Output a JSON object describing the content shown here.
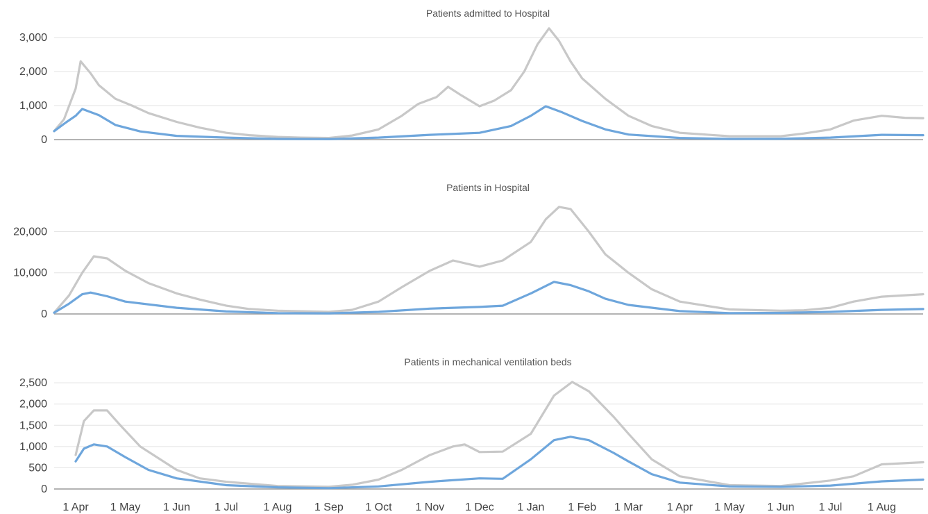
{
  "colors": {
    "series_a": "#c8c8c8",
    "series_b": "#6ea6dc",
    "grid": "#e3e3e3",
    "baseline": "#9a9a9a"
  },
  "x_axis": {
    "ticks": [
      {
        "date": "2020-04-01",
        "label": "1 Apr"
      },
      {
        "date": "2020-05-01",
        "label": "1 May"
      },
      {
        "date": "2020-06-01",
        "label": "1 Jun"
      },
      {
        "date": "2020-07-01",
        "label": "1 Jul"
      },
      {
        "date": "2020-08-01",
        "label": "1 Aug"
      },
      {
        "date": "2020-09-01",
        "label": "1 Sep"
      },
      {
        "date": "2020-10-01",
        "label": "1 Oct"
      },
      {
        "date": "2020-11-01",
        "label": "1 Nov"
      },
      {
        "date": "2020-12-01",
        "label": "1 Dec"
      },
      {
        "date": "2021-01-01",
        "label": "1 Jan"
      },
      {
        "date": "2021-02-01",
        "label": "1 Feb"
      },
      {
        "date": "2021-03-01",
        "label": "1 Mar"
      },
      {
        "date": "2021-04-01",
        "label": "1 Apr"
      },
      {
        "date": "2021-05-01",
        "label": "1 May"
      },
      {
        "date": "2021-06-01",
        "label": "1 Jun"
      },
      {
        "date": "2021-07-01",
        "label": "1 Jul"
      },
      {
        "date": "2021-08-01",
        "label": "1 Aug"
      }
    ],
    "range": [
      "2020-03-19",
      "2021-08-26"
    ]
  },
  "chart_data": [
    {
      "type": "line",
      "title": "Patients admitted to Hospital",
      "ylim": [
        0,
        3000
      ],
      "yticks": [
        0,
        1000,
        2000,
        3000
      ],
      "ytick_labels": [
        "0",
        "1,000",
        "2,000",
        "3,000"
      ],
      "grid": true,
      "series": [
        {
          "points": [
            [
              "2020-03-19",
              250
            ],
            [
              "2020-03-25",
              600
            ],
            [
              "2020-04-01",
              1500
            ],
            [
              "2020-04-04",
              2300
            ],
            [
              "2020-04-10",
              1950
            ],
            [
              "2020-04-15",
              1600
            ],
            [
              "2020-04-25",
              1200
            ],
            [
              "2020-05-05",
              1000
            ],
            [
              "2020-05-15",
              780
            ],
            [
              "2020-06-01",
              520
            ],
            [
              "2020-06-15",
              350
            ],
            [
              "2020-07-01",
              200
            ],
            [
              "2020-07-15",
              130
            ],
            [
              "2020-08-01",
              80
            ],
            [
              "2020-08-15",
              60
            ],
            [
              "2020-09-01",
              50
            ],
            [
              "2020-09-15",
              120
            ],
            [
              "2020-10-01",
              300
            ],
            [
              "2020-10-15",
              700
            ],
            [
              "2020-10-25",
              1050
            ],
            [
              "2020-11-05",
              1250
            ],
            [
              "2020-11-12",
              1550
            ],
            [
              "2020-11-20",
              1300
            ],
            [
              "2020-12-01",
              980
            ],
            [
              "2020-12-10",
              1150
            ],
            [
              "2020-12-20",
              1450
            ],
            [
              "2020-12-28",
              2000
            ],
            [
              "2021-01-05",
              2800
            ],
            [
              "2021-01-12",
              3270
            ],
            [
              "2021-01-18",
              2900
            ],
            [
              "2021-01-25",
              2300
            ],
            [
              "2021-02-01",
              1800
            ],
            [
              "2021-02-15",
              1200
            ],
            [
              "2021-03-01",
              700
            ],
            [
              "2021-03-15",
              400
            ],
            [
              "2021-04-01",
              200
            ],
            [
              "2021-05-01",
              100
            ],
            [
              "2021-06-01",
              100
            ],
            [
              "2021-06-15",
              180
            ],
            [
              "2021-07-01",
              300
            ],
            [
              "2021-07-15",
              560
            ],
            [
              "2021-08-01",
              700
            ],
            [
              "2021-08-15",
              640
            ],
            [
              "2021-08-26",
              630
            ]
          ]
        },
        {
          "points": [
            [
              "2020-03-19",
              250
            ],
            [
              "2020-03-26",
              500
            ],
            [
              "2020-04-01",
              700
            ],
            [
              "2020-04-05",
              900
            ],
            [
              "2020-04-15",
              720
            ],
            [
              "2020-04-25",
              430
            ],
            [
              "2020-05-10",
              240
            ],
            [
              "2020-06-01",
              110
            ],
            [
              "2020-07-01",
              60
            ],
            [
              "2020-08-01",
              20
            ],
            [
              "2020-09-01",
              15
            ],
            [
              "2020-10-01",
              60
            ],
            [
              "2020-11-01",
              140
            ],
            [
              "2020-12-01",
              200
            ],
            [
              "2020-12-20",
              400
            ],
            [
              "2021-01-01",
              700
            ],
            [
              "2021-01-10",
              980
            ],
            [
              "2021-01-20",
              800
            ],
            [
              "2021-02-01",
              550
            ],
            [
              "2021-02-15",
              300
            ],
            [
              "2021-03-01",
              150
            ],
            [
              "2021-04-01",
              50
            ],
            [
              "2021-05-01",
              20
            ],
            [
              "2021-06-01",
              25
            ],
            [
              "2021-07-01",
              60
            ],
            [
              "2021-08-01",
              140
            ],
            [
              "2021-08-26",
              130
            ]
          ]
        }
      ]
    },
    {
      "type": "line",
      "title": "Patients in Hospital",
      "ylim": [
        0,
        27000
      ],
      "yticks": [
        0,
        10000,
        20000
      ],
      "ytick_labels": [
        "0",
        "10,000",
        "20,000"
      ],
      "grid": true,
      "series": [
        {
          "points": [
            [
              "2020-03-19",
              300
            ],
            [
              "2020-03-28",
              4500
            ],
            [
              "2020-04-05",
              10000
            ],
            [
              "2020-04-12",
              14000
            ],
            [
              "2020-04-20",
              13500
            ],
            [
              "2020-05-01",
              10500
            ],
            [
              "2020-05-15",
              7500
            ],
            [
              "2020-06-01",
              5000
            ],
            [
              "2020-06-15",
              3500
            ],
            [
              "2020-07-01",
              2000
            ],
            [
              "2020-07-15",
              1200
            ],
            [
              "2020-08-01",
              800
            ],
            [
              "2020-09-01",
              500
            ],
            [
              "2020-09-15",
              1000
            ],
            [
              "2020-10-01",
              3000
            ],
            [
              "2020-10-15",
              6500
            ],
            [
              "2020-11-01",
              10500
            ],
            [
              "2020-11-15",
              13000
            ],
            [
              "2020-12-01",
              11500
            ],
            [
              "2020-12-15",
              13000
            ],
            [
              "2021-01-01",
              17500
            ],
            [
              "2021-01-10",
              23000
            ],
            [
              "2021-01-18",
              26000
            ],
            [
              "2021-01-25",
              25500
            ],
            [
              "2021-02-05",
              20000
            ],
            [
              "2021-02-15",
              14500
            ],
            [
              "2021-03-01",
              10000
            ],
            [
              "2021-03-15",
              6000
            ],
            [
              "2021-04-01",
              3000
            ],
            [
              "2021-05-01",
              1100
            ],
            [
              "2021-06-01",
              800
            ],
            [
              "2021-06-15",
              900
            ],
            [
              "2021-07-01",
              1500
            ],
            [
              "2021-07-15",
              3000
            ],
            [
              "2021-08-01",
              4200
            ],
            [
              "2021-08-26",
              4800
            ]
          ]
        },
        {
          "points": [
            [
              "2020-03-19",
              300
            ],
            [
              "2020-03-28",
              2500
            ],
            [
              "2020-04-05",
              4800
            ],
            [
              "2020-04-10",
              5200
            ],
            [
              "2020-04-20",
              4300
            ],
            [
              "2020-05-01",
              3000
            ],
            [
              "2020-06-01",
              1500
            ],
            [
              "2020-07-01",
              600
            ],
            [
              "2020-08-01",
              200
            ],
            [
              "2020-09-01",
              150
            ],
            [
              "2020-10-01",
              500
            ],
            [
              "2020-11-01",
              1300
            ],
            [
              "2020-12-01",
              1700
            ],
            [
              "2020-12-15",
              2000
            ],
            [
              "2021-01-01",
              5000
            ],
            [
              "2021-01-15",
              7800
            ],
            [
              "2021-01-25",
              7000
            ],
            [
              "2021-02-05",
              5500
            ],
            [
              "2021-02-15",
              3700
            ],
            [
              "2021-03-01",
              2200
            ],
            [
              "2021-04-01",
              700
            ],
            [
              "2021-05-01",
              200
            ],
            [
              "2021-06-01",
              250
            ],
            [
              "2021-07-01",
              500
            ],
            [
              "2021-08-01",
              1000
            ],
            [
              "2021-08-26",
              1200
            ]
          ]
        }
      ]
    },
    {
      "type": "line",
      "title": "Patients in mechanical ventilation beds",
      "ylim": [
        0,
        2600
      ],
      "yticks": [
        0,
        500,
        1000,
        1500,
        2000,
        2500
      ],
      "ytick_labels": [
        "0",
        "500",
        "1,000",
        "1,500",
        "2,000",
        "2,500"
      ],
      "grid": true,
      "series": [
        {
          "points": [
            [
              "2020-04-01",
              800
            ],
            [
              "2020-04-06",
              1600
            ],
            [
              "2020-04-12",
              1850
            ],
            [
              "2020-04-20",
              1850
            ],
            [
              "2020-04-28",
              1500
            ],
            [
              "2020-05-10",
              1000
            ],
            [
              "2020-06-01",
              450
            ],
            [
              "2020-06-15",
              250
            ],
            [
              "2020-07-01",
              170
            ],
            [
              "2020-08-01",
              70
            ],
            [
              "2020-09-01",
              50
            ],
            [
              "2020-09-15",
              100
            ],
            [
              "2020-10-01",
              220
            ],
            [
              "2020-10-15",
              450
            ],
            [
              "2020-11-01",
              800
            ],
            [
              "2020-11-15",
              1000
            ],
            [
              "2020-11-22",
              1050
            ],
            [
              "2020-12-01",
              870
            ],
            [
              "2020-12-15",
              880
            ],
            [
              "2021-01-01",
              1300
            ],
            [
              "2021-01-15",
              2200
            ],
            [
              "2021-01-26",
              2520
            ],
            [
              "2021-02-05",
              2300
            ],
            [
              "2021-02-20",
              1700
            ],
            [
              "2021-03-01",
              1300
            ],
            [
              "2021-03-15",
              700
            ],
            [
              "2021-04-01",
              300
            ],
            [
              "2021-05-01",
              90
            ],
            [
              "2021-06-01",
              70
            ],
            [
              "2021-07-01",
              200
            ],
            [
              "2021-07-15",
              300
            ],
            [
              "2021-08-01",
              580
            ],
            [
              "2021-08-26",
              630
            ]
          ]
        },
        {
          "points": [
            [
              "2020-04-01",
              650
            ],
            [
              "2020-04-06",
              950
            ],
            [
              "2020-04-12",
              1050
            ],
            [
              "2020-04-20",
              1000
            ],
            [
              "2020-05-01",
              750
            ],
            [
              "2020-05-15",
              450
            ],
            [
              "2020-06-01",
              250
            ],
            [
              "2020-07-01",
              90
            ],
            [
              "2020-08-01",
              40
            ],
            [
              "2020-09-01",
              20
            ],
            [
              "2020-10-01",
              60
            ],
            [
              "2020-11-01",
              170
            ],
            [
              "2020-12-01",
              250
            ],
            [
              "2020-12-15",
              240
            ],
            [
              "2021-01-01",
              700
            ],
            [
              "2021-01-15",
              1150
            ],
            [
              "2021-01-25",
              1230
            ],
            [
              "2021-02-05",
              1150
            ],
            [
              "2021-02-20",
              850
            ],
            [
              "2021-03-01",
              650
            ],
            [
              "2021-03-15",
              350
            ],
            [
              "2021-04-01",
              150
            ],
            [
              "2021-05-01",
              60
            ],
            [
              "2021-06-01",
              50
            ],
            [
              "2021-07-01",
              80
            ],
            [
              "2021-08-01",
              180
            ],
            [
              "2021-08-26",
              220
            ]
          ]
        }
      ]
    }
  ]
}
